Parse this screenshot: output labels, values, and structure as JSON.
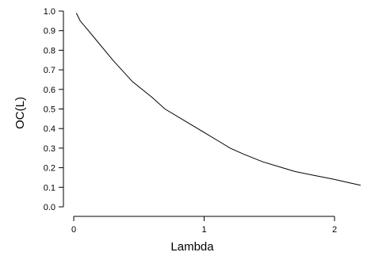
{
  "chart_data": {
    "type": "line",
    "title": "",
    "xlabel": "Lambda",
    "ylabel": "OC(L)",
    "xlim": [
      0,
      2.2
    ],
    "ylim": [
      0.0,
      1.0
    ],
    "xticks": [
      0,
      1,
      2
    ],
    "xtick_labels": [
      "0",
      "1",
      "2"
    ],
    "yticks": [
      0.0,
      0.1,
      0.2,
      0.3,
      0.4,
      0.5,
      0.6,
      0.7,
      0.8,
      0.9,
      1.0
    ],
    "ytick_labels": [
      "0.0",
      "0.1",
      "0.2",
      "0.3",
      "0.4",
      "0.5",
      "0.6",
      "0.7",
      "0.8",
      "0.9",
      "1.0"
    ],
    "grid": false,
    "line_color": "#000000",
    "series": [
      {
        "x": [
          0.02,
          0.05,
          0.1,
          0.2,
          0.3,
          0.45,
          0.6,
          0.7,
          0.85,
          0.95,
          1.1,
          1.2,
          1.3,
          1.45,
          1.6,
          1.7,
          1.85,
          2.0,
          2.1,
          2.2
        ],
        "y": [
          0.99,
          0.95,
          0.91,
          0.83,
          0.75,
          0.64,
          0.56,
          0.5,
          0.44,
          0.4,
          0.34,
          0.3,
          0.27,
          0.23,
          0.2,
          0.18,
          0.16,
          0.14,
          0.125,
          0.11
        ]
      }
    ]
  }
}
